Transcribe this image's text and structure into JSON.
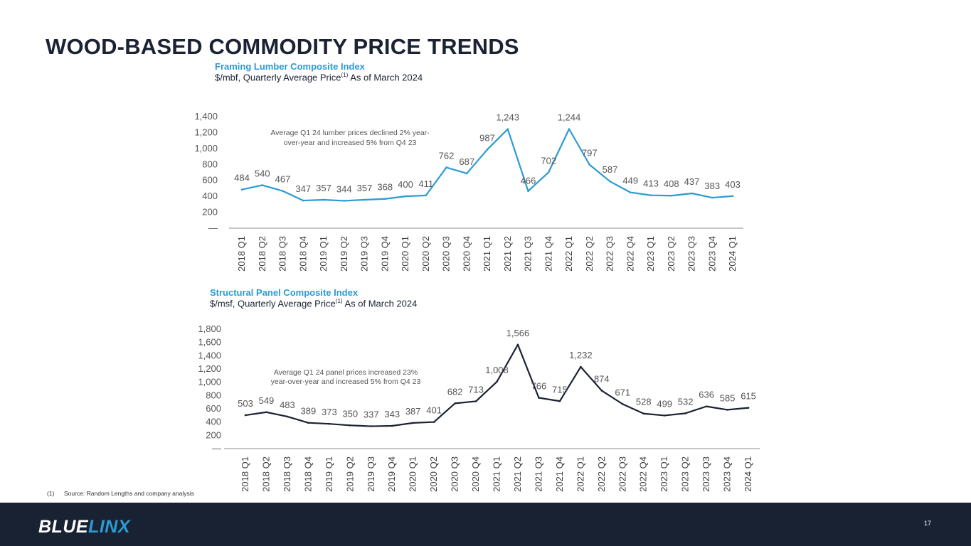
{
  "page": {
    "title": "WOOD-BASED COMMODITY PRICE TRENDS",
    "footnote_number": "(1)",
    "footnote_text": "Source:  Random Lengths and company analysis",
    "page_number": "17",
    "logo": {
      "part1": "BLUE",
      "part2": "LINX"
    }
  },
  "colors": {
    "lumber_line": "#2b9bd3",
    "panel_line": "#1b2234",
    "footer": "#192232"
  },
  "chart_data": [
    {
      "type": "line",
      "title": "Framing Lumber Composite Index",
      "subtitle": "$/mbf, Quarterly Average Price",
      "subtitle_sup": "(1)",
      "subtitle_suffix": " As of March 2024",
      "annotation": [
        "Average Q1 24 lumber prices declined 2% year-",
        "over-year and increased 5% from Q4 23"
      ],
      "categories": [
        "2018 Q1",
        "2018 Q2",
        "2018 Q3",
        "2018 Q4",
        "2019 Q1",
        "2019 Q2",
        "2019 Q3",
        "2019 Q4",
        "2020 Q1",
        "2020 Q2",
        "2020 Q3",
        "2020 Q4",
        "2021 Q1",
        "2021 Q2",
        "2021 Q3",
        "2021 Q4",
        "2022 Q1",
        "2022 Q2",
        "2022 Q3",
        "2022 Q4",
        "2023 Q1",
        "2023 Q2",
        "2023 Q3",
        "2023 Q4",
        "2024 Q1"
      ],
      "values": [
        484,
        540,
        467,
        347,
        357,
        344,
        357,
        368,
        400,
        411,
        762,
        687,
        987,
        1243,
        466,
        702,
        1244,
        797,
        587,
        449,
        413,
        408,
        437,
        383,
        403
      ],
      "data_labels": [
        "484",
        "540",
        "467",
        "347",
        "357",
        "344",
        "357",
        "368",
        "400",
        "411",
        "762",
        "687",
        "987",
        "1,243",
        "466",
        "702",
        "1,244",
        "797",
        "587",
        "449",
        "413",
        "408",
        "437",
        "383",
        "403"
      ],
      "yticks": [
        "—",
        "200",
        "400",
        "600",
        "800",
        "1,000",
        "1,200",
        "1,400"
      ],
      "ylim": [
        0,
        1400
      ],
      "color": "#2b9bd3"
    },
    {
      "type": "line",
      "title": "Structural Panel Composite Index",
      "subtitle": "$/msf, Quarterly Average Price",
      "subtitle_sup": "(1)",
      "subtitle_suffix": " As of March 2024",
      "annotation": [
        "Average Q1 24 panel prices increased 23%",
        "year-over-year and increased 5% from Q4 23"
      ],
      "categories": [
        "2018 Q1",
        "2018 Q2",
        "2018 Q3",
        "2018 Q4",
        "2019 Q1",
        "2019 Q2",
        "2019 Q3",
        "2019 Q4",
        "2020 Q1",
        "2020 Q2",
        "2020 Q3",
        "2020 Q4",
        "2021 Q1",
        "2021 Q2",
        "2021 Q3",
        "2021 Q4",
        "2022 Q1",
        "2022 Q2",
        "2022 Q3",
        "2022 Q4",
        "2023 Q1",
        "2023 Q2",
        "2023 Q3",
        "2023 Q4",
        "2024 Q1"
      ],
      "values": [
        503,
        549,
        483,
        389,
        373,
        350,
        337,
        343,
        387,
        401,
        682,
        713,
        1008,
        1566,
        766,
        715,
        1232,
        874,
        671,
        528,
        499,
        532,
        636,
        585,
        615
      ],
      "data_labels": [
        "503",
        "549",
        "483",
        "389",
        "373",
        "350",
        "337",
        "343",
        "387",
        "401",
        "682",
        "713",
        "1,008",
        "1,566",
        "766",
        "715",
        "1,232",
        "874",
        "671",
        "528",
        "499",
        "532",
        "636",
        "585",
        "615"
      ],
      "yticks": [
        "—",
        "200",
        "400",
        "600",
        "800",
        "1,000",
        "1,200",
        "1,400",
        "1,600",
        "1,800"
      ],
      "ylim": [
        0,
        1800
      ],
      "color": "#1b2234"
    }
  ]
}
